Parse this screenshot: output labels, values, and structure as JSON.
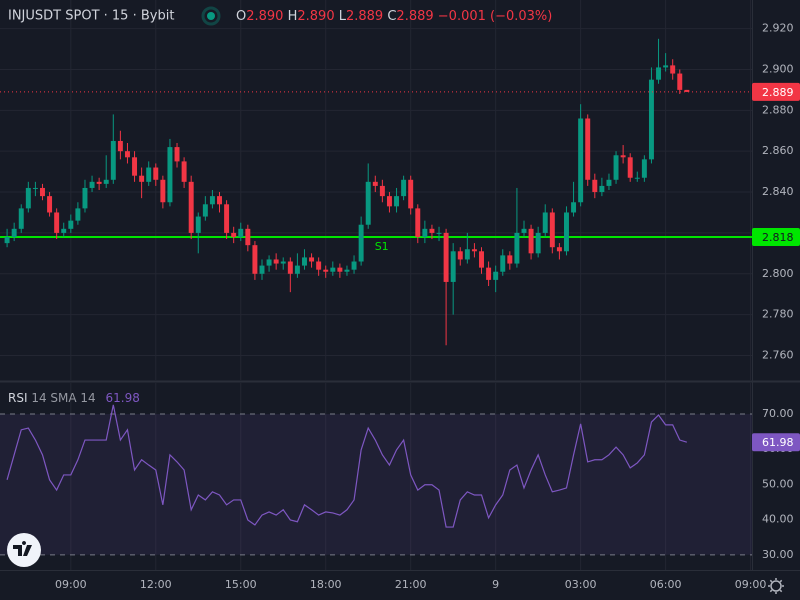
{
  "header": {
    "symbol": "INJUSDT SPOT · 15 · Bybit",
    "ohlc": [
      {
        "key": "O",
        "value": "2.890"
      },
      {
        "key": "H",
        "value": "2.890"
      },
      {
        "key": "L",
        "value": "2.889"
      },
      {
        "key": "C",
        "value": "2.889"
      }
    ],
    "change": "−0.001 (−0.03%)"
  },
  "chart_data": [
    {
      "type": "candlestick",
      "up_color": "#089981",
      "down_color": "#f23645",
      "grid": true,
      "x": [
        6.75,
        7,
        7.25,
        7.5,
        7.75,
        8,
        8.25,
        8.5,
        8.75,
        9,
        9.25,
        9.5,
        9.75,
        10,
        10.25,
        10.5,
        10.75,
        11,
        11.25,
        11.5,
        11.75,
        12,
        12.25,
        12.5,
        12.75,
        13,
        13.25,
        13.5,
        13.75,
        14,
        14.25,
        14.5,
        14.75,
        15,
        15.25,
        15.5,
        15.75,
        16,
        16.25,
        16.5,
        16.75,
        17,
        17.25,
        17.5,
        17.75,
        18,
        18.25,
        18.5,
        18.75,
        19,
        19.25,
        19.5,
        19.75,
        20,
        20.25,
        20.5,
        20.75,
        21,
        21.25,
        21.5,
        21.75,
        22,
        22.25,
        22.5,
        22.75,
        23,
        23.25,
        23.5,
        23.75,
        24,
        24.25,
        24.5,
        24.75,
        25,
        25.25,
        25.5,
        25.75,
        26,
        26.25,
        26.5,
        26.75,
        27,
        27.25,
        27.5,
        27.75,
        28,
        28.25,
        28.5,
        28.75,
        29,
        29.25,
        29.5,
        29.75,
        30,
        30.25,
        30.5,
        30.75
      ],
      "open": [
        2.815,
        2.818,
        2.822,
        2.832,
        2.842,
        2.842,
        2.838,
        2.83,
        2.82,
        2.822,
        2.826,
        2.832,
        2.842,
        2.845,
        2.844,
        2.846,
        2.865,
        2.86,
        2.857,
        2.848,
        2.845,
        2.852,
        2.846,
        2.835,
        2.862,
        2.855,
        2.845,
        2.82,
        2.828,
        2.834,
        2.838,
        2.834,
        2.82,
        2.818,
        2.822,
        2.814,
        2.8,
        2.804,
        2.807,
        2.805,
        2.806,
        2.8,
        2.804,
        2.808,
        2.806,
        2.802,
        2.801,
        2.803,
        2.801,
        2.802,
        2.806,
        2.824,
        2.845,
        2.843,
        2.838,
        2.833,
        2.838,
        2.846,
        2.832,
        2.818,
        2.822,
        2.82,
        2.82,
        2.796,
        2.811,
        2.807,
        2.812,
        2.811,
        2.803,
        2.797,
        2.801,
        2.809,
        2.805,
        2.82,
        2.822,
        2.81,
        2.82,
        2.83,
        2.813,
        2.811,
        2.83,
        2.835,
        2.876,
        2.846,
        2.84,
        2.843,
        2.846,
        2.858,
        2.857,
        2.847,
        2.847,
        2.856,
        2.895,
        2.901,
        2.902,
        2.898,
        2.89
      ],
      "high": [
        2.822,
        2.825,
        2.834,
        2.845,
        2.845,
        2.844,
        2.84,
        2.832,
        2.825,
        2.829,
        2.835,
        2.846,
        2.848,
        2.847,
        2.858,
        2.878,
        2.87,
        2.864,
        2.86,
        2.852,
        2.855,
        2.854,
        2.848,
        2.866,
        2.864,
        2.857,
        2.848,
        2.83,
        2.838,
        2.841,
        2.84,
        2.836,
        2.823,
        2.825,
        2.824,
        2.816,
        2.807,
        2.809,
        2.81,
        2.808,
        2.808,
        2.81,
        2.812,
        2.81,
        2.808,
        2.804,
        2.806,
        2.805,
        2.804,
        2.809,
        2.828,
        2.854,
        2.848,
        2.846,
        2.84,
        2.842,
        2.848,
        2.848,
        2.834,
        2.826,
        2.824,
        2.823,
        2.822,
        2.815,
        2.813,
        2.82,
        2.815,
        2.813,
        2.806,
        2.804,
        2.812,
        2.811,
        2.842,
        2.826,
        2.824,
        2.823,
        2.834,
        2.832,
        2.815,
        2.833,
        2.845,
        2.883,
        2.878,
        2.849,
        2.847,
        2.849,
        2.86,
        2.863,
        2.859,
        2.85,
        2.858,
        2.901,
        2.915,
        2.908,
        2.905,
        2.9,
        2.89
      ],
      "low": [
        2.813,
        2.816,
        2.82,
        2.83,
        2.838,
        2.836,
        2.828,
        2.817,
        2.818,
        2.82,
        2.824,
        2.83,
        2.84,
        2.841,
        2.842,
        2.844,
        2.856,
        2.854,
        2.845,
        2.837,
        2.843,
        2.843,
        2.832,
        2.833,
        2.852,
        2.842,
        2.817,
        2.81,
        2.826,
        2.832,
        2.83,
        2.817,
        2.815,
        2.816,
        2.811,
        2.797,
        2.797,
        2.801,
        2.802,
        2.802,
        2.791,
        2.798,
        2.802,
        2.803,
        2.799,
        2.798,
        2.799,
        2.798,
        2.799,
        2.8,
        2.804,
        2.822,
        2.84,
        2.835,
        2.83,
        2.83,
        2.836,
        2.829,
        2.815,
        2.815,
        2.817,
        2.816,
        2.765,
        2.78,
        2.804,
        2.805,
        2.808,
        2.8,
        2.794,
        2.791,
        2.799,
        2.802,
        2.803,
        2.818,
        2.807,
        2.808,
        2.818,
        2.81,
        2.807,
        2.809,
        2.828,
        2.833,
        2.843,
        2.837,
        2.838,
        2.841,
        2.844,
        2.854,
        2.845,
        2.845,
        2.845,
        2.854,
        2.893,
        2.899,
        2.895,
        2.888,
        2.889
      ],
      "close": [
        2.818,
        2.822,
        2.832,
        2.842,
        2.842,
        2.838,
        2.83,
        2.82,
        2.822,
        2.826,
        2.832,
        2.842,
        2.845,
        2.844,
        2.846,
        2.865,
        2.86,
        2.857,
        2.848,
        2.845,
        2.852,
        2.846,
        2.835,
        2.862,
        2.855,
        2.845,
        2.82,
        2.828,
        2.834,
        2.838,
        2.834,
        2.82,
        2.818,
        2.822,
        2.814,
        2.8,
        2.804,
        2.807,
        2.805,
        2.806,
        2.8,
        2.804,
        2.808,
        2.806,
        2.802,
        2.801,
        2.803,
        2.801,
        2.802,
        2.806,
        2.824,
        2.845,
        2.843,
        2.838,
        2.833,
        2.838,
        2.846,
        2.832,
        2.818,
        2.822,
        2.82,
        2.82,
        2.796,
        2.811,
        2.807,
        2.812,
        2.811,
        2.803,
        2.797,
        2.801,
        2.809,
        2.805,
        2.82,
        2.822,
        2.81,
        2.82,
        2.83,
        2.813,
        2.811,
        2.83,
        2.835,
        2.876,
        2.846,
        2.84,
        2.843,
        2.846,
        2.858,
        2.857,
        2.847,
        2.847,
        2.856,
        2.895,
        2.901,
        2.902,
        2.898,
        2.89,
        2.889
      ],
      "xlim": [
        6.5,
        33.05
      ],
      "xticks": [
        {
          "value": 9,
          "label": "09:00"
        },
        {
          "value": 12,
          "label": "12:00"
        },
        {
          "value": 15,
          "label": "15:00"
        },
        {
          "value": 18,
          "label": "18:00"
        },
        {
          "value": 21,
          "label": "21:00"
        },
        {
          "value": 24,
          "label": "9"
        },
        {
          "value": 27,
          "label": "03:00"
        },
        {
          "value": 30,
          "label": "06:00"
        },
        {
          "value": 33,
          "label": "09:00"
        }
      ],
      "ylim": [
        2.748,
        2.934
      ],
      "yticks": [
        {
          "value": 2.92,
          "label": "2.920"
        },
        {
          "value": 2.9,
          "label": "2.900"
        },
        {
          "value": 2.88,
          "label": "2.880"
        },
        {
          "value": 2.86,
          "label": "2.860"
        },
        {
          "value": 2.84,
          "label": "2.840"
        },
        {
          "value": 2.82,
          "label": "2.820"
        },
        {
          "value": 2.8,
          "label": "2.800"
        },
        {
          "value": 2.78,
          "label": "2.780"
        },
        {
          "value": 2.76,
          "label": "2.760"
        }
      ],
      "levels": [
        {
          "name": "S1",
          "value": 2.818,
          "color": "#00e600"
        }
      ]
    },
    {
      "type": "line",
      "title": "RSI",
      "params": "14 SMA 14",
      "series": [
        {
          "name": "RSI",
          "color": "#7e57c2",
          "values": [
            51.3,
            58.4,
            65.5,
            66.0,
            62.6,
            58.4,
            51.3,
            48.4,
            52.7,
            52.7,
            57.0,
            62.6,
            62.6,
            62.6,
            62.6,
            72.6,
            62.6,
            65.5,
            54.1,
            57.0,
            55.5,
            54.1,
            44.2,
            58.4,
            56.4,
            54.1,
            42.8,
            47.0,
            45.6,
            47.9,
            47.0,
            44.2,
            45.6,
            45.6,
            39.9,
            38.5,
            41.3,
            42.2,
            41.3,
            42.8,
            39.9,
            39.4,
            44.2,
            42.8,
            41.3,
            42.2,
            41.9,
            41.3,
            42.8,
            45.6,
            59.8,
            66.0,
            62.6,
            58.4,
            55.5,
            59.8,
            62.6,
            52.7,
            48.4,
            49.9,
            49.9,
            48.4,
            37.9,
            37.9,
            45.6,
            47.9,
            47.0,
            47.0,
            40.5,
            44.2,
            47.0,
            54.1,
            55.5,
            49.0,
            54.1,
            58.4,
            52.7,
            47.9,
            48.4,
            49.0,
            58.4,
            67.2,
            56.4,
            57.0,
            57.0,
            58.4,
            60.6,
            58.4,
            54.7,
            56.1,
            58.4,
            67.7,
            69.7,
            66.9,
            66.9,
            62.6,
            61.98
          ]
        }
      ],
      "band": {
        "upper": 70,
        "lower": 30,
        "fill": "#7e57c2"
      },
      "ylim": [
        25.7,
        78.8
      ],
      "yticks": [
        {
          "value": 70,
          "label": "70.00"
        },
        {
          "value": 60,
          "label": "60.00"
        },
        {
          "value": 50,
          "label": "50.00"
        },
        {
          "value": 40,
          "label": "40.00"
        },
        {
          "value": 30,
          "label": "30.00"
        }
      ]
    }
  ]
}
